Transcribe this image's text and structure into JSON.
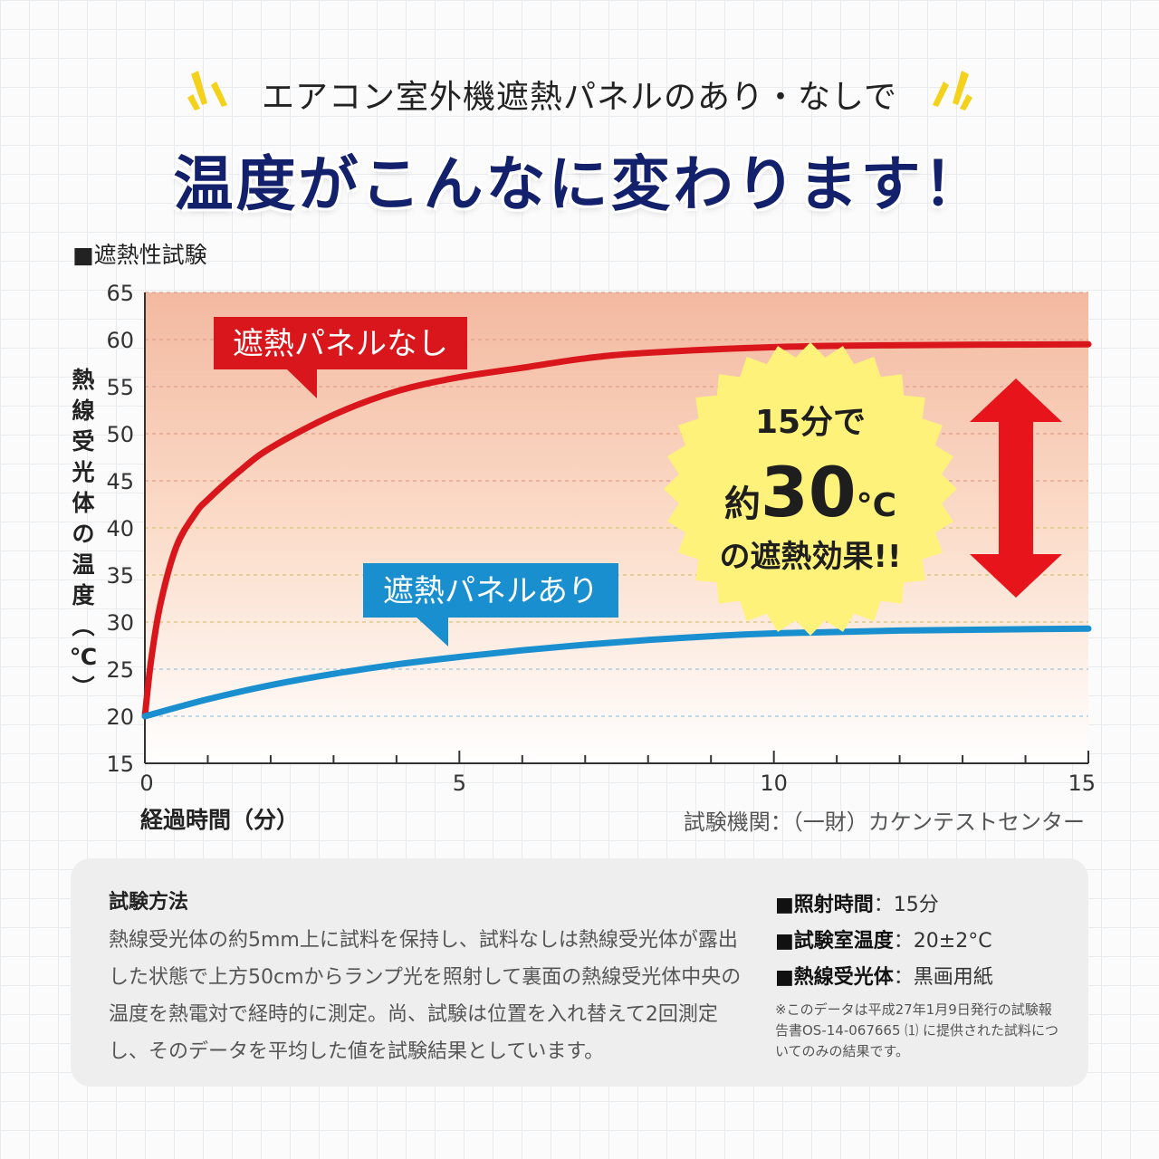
{
  "header": {
    "subtitle": "エアコン室外機遮熱パネルのあり・なしで",
    "headline": "温度がこんなに変わります！"
  },
  "section_label": "■遮熱性試験",
  "badge": {
    "line1": "15分で",
    "line2_prefix": "約",
    "line2_number": "30",
    "line2_unit": "°C",
    "line3": "の遮熱効果!!",
    "color": "#fff27a"
  },
  "source": "試験機関：（一財）カケンテストセンター",
  "method": {
    "title": "試験方法",
    "body": "熱線受光体の約5mm上に試料を保持し、試料なしは熱線受光体が露出した状態で上方50cmからランプ光を照射して裏面の熱線受光体中央の温度を熱電対で経時的に測定。尚、試験は位置を入れ替えて2回測定し、そのデータを平均した値を試験結果としています。",
    "specs": [
      {
        "label": "■照射時間",
        "value": "：15分"
      },
      {
        "label": "■試験室温度",
        "value": "：20±2°C"
      },
      {
        "label": "■熱線受光体",
        "value": "：黒画用紙"
      }
    ],
    "note": "※このデータは平成27年1月9日発行の試験報告書OS-14-067665 ⑴ に提供された試料についてのみの結果です。"
  },
  "chart_data": {
    "type": "line",
    "xlabel": "経過時間（分）",
    "ylabel": "熱線受光体の温度（℃）",
    "xlim": [
      0,
      15
    ],
    "ylim": [
      15,
      65
    ],
    "x_ticks": [
      0,
      5,
      10,
      15
    ],
    "y_ticks": [
      15,
      20,
      25,
      30,
      35,
      40,
      45,
      50,
      55,
      60,
      65
    ],
    "grid": true,
    "series": [
      {
        "name": "遮熱パネルなし",
        "color": "#d9161c",
        "points": [
          [
            0,
            20
          ],
          [
            0.1,
            26
          ],
          [
            0.25,
            32
          ],
          [
            0.5,
            38
          ],
          [
            0.8,
            41.5
          ],
          [
            1,
            43
          ],
          [
            1.5,
            46
          ],
          [
            2,
            48.5
          ],
          [
            3,
            52
          ],
          [
            4,
            54.5
          ],
          [
            5,
            56
          ],
          [
            6,
            57
          ],
          [
            7,
            58
          ],
          [
            8,
            58.6
          ],
          [
            10,
            59.2
          ],
          [
            12,
            59.4
          ],
          [
            15,
            59.5
          ]
        ]
      },
      {
        "name": "遮熱パネルあり",
        "color": "#1a8fd0",
        "points": [
          [
            0,
            20
          ],
          [
            1,
            21.8
          ],
          [
            2,
            23.3
          ],
          [
            3,
            24.5
          ],
          [
            4,
            25.5
          ],
          [
            5,
            26.3
          ],
          [
            6,
            27
          ],
          [
            7,
            27.6
          ],
          [
            8,
            28.1
          ],
          [
            9,
            28.5
          ],
          [
            10,
            28.8
          ],
          [
            12,
            29.1
          ],
          [
            15,
            29.3
          ]
        ]
      }
    ]
  }
}
